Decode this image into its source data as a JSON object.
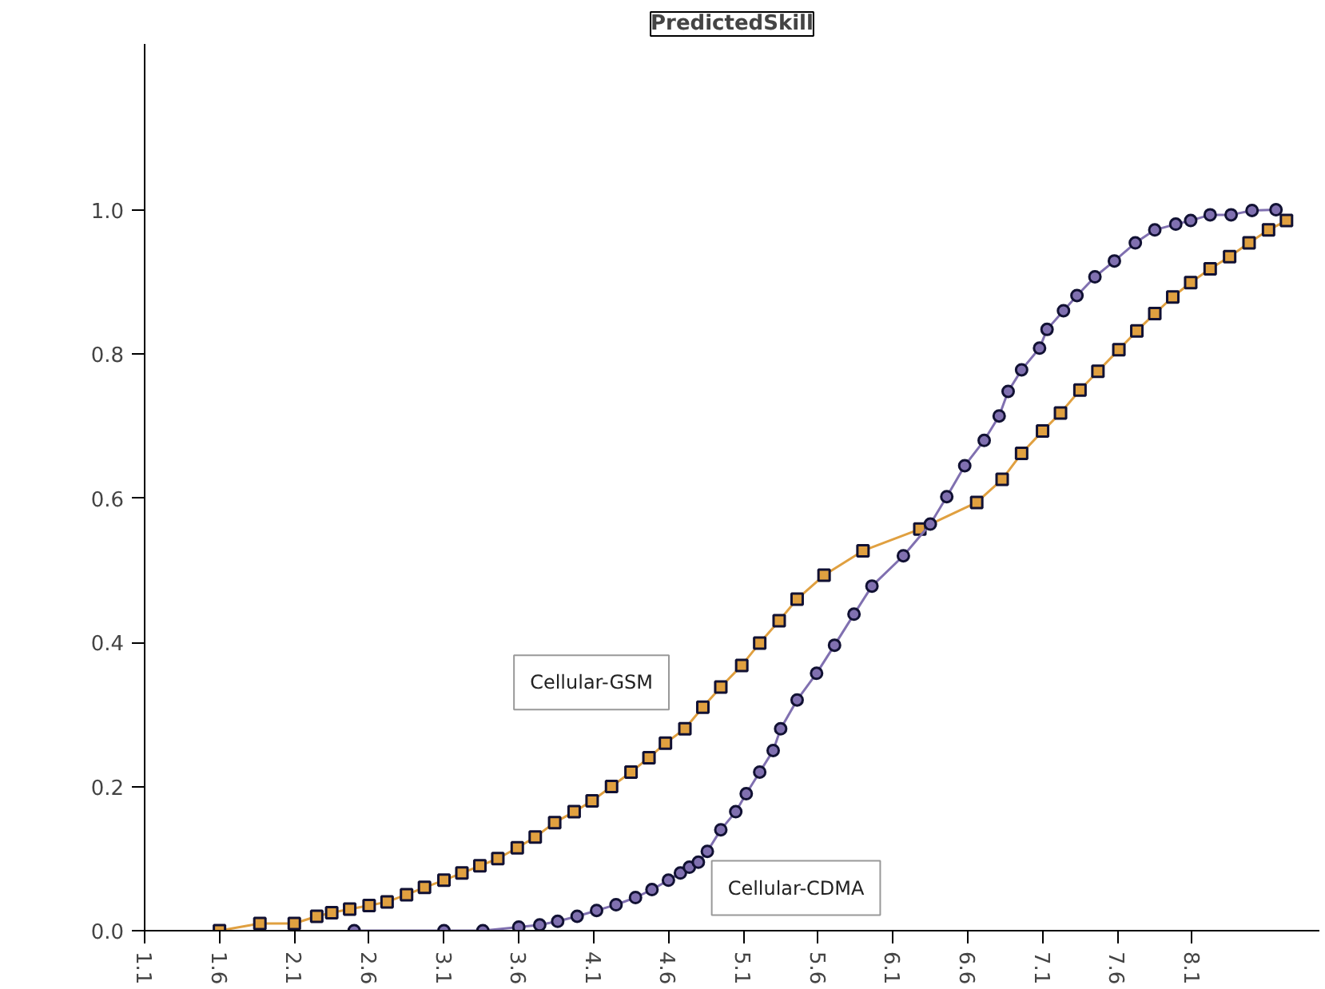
{
  "chart_data": {
    "type": "line",
    "title": "PredictedSkill",
    "xlim": [
      1.1,
      8.95
    ],
    "ylim": [
      0,
      1.23
    ],
    "xticks": [
      1.1,
      1.6,
      2.1,
      2.6,
      3.1,
      3.6,
      4.1,
      4.6,
      5.1,
      5.6,
      6.1,
      6.6,
      7.1,
      7.6,
      8.1
    ],
    "yticks": [
      {
        "value": 0,
        "label": "0.0"
      },
      {
        "value": 0.2,
        "label": "0.2"
      },
      {
        "value": 0.4,
        "label": "0.4"
      },
      {
        "value": 0.6,
        "label": "0.6"
      },
      {
        "value": 0.8,
        "label": "0.8"
      },
      {
        "value": 1,
        "label": "1.0"
      }
    ],
    "grid": false,
    "legend": false,
    "series": [
      {
        "name": "Cellular-GSM",
        "color": "#e0a040",
        "marker": "square",
        "x": [
          1.6,
          1.87,
          2.1,
          2.25,
          2.35,
          2.47,
          2.6,
          2.72,
          2.85,
          2.97,
          3.1,
          3.22,
          3.34,
          3.46,
          3.59,
          3.71,
          3.84,
          3.97,
          4.09,
          4.22,
          4.35,
          4.47,
          4.58,
          4.71,
          4.83,
          4.95,
          5.09,
          5.21,
          5.34,
          5.46,
          5.64,
          5.9,
          6.28,
          6.66,
          6.83,
          6.96,
          7.1,
          7.22,
          7.35,
          7.47,
          7.61,
          7.73,
          7.85,
          7.97,
          8.09,
          8.22,
          8.35,
          8.48,
          8.61,
          8.73
        ],
        "values": [
          0.0,
          0.01,
          0.01,
          0.02,
          0.025,
          0.03,
          0.035,
          0.04,
          0.05,
          0.06,
          0.07,
          0.08,
          0.09,
          0.1,
          0.115,
          0.13,
          0.15,
          0.165,
          0.18,
          0.2,
          0.22,
          0.24,
          0.26,
          0.28,
          0.31,
          0.338,
          0.368,
          0.399,
          0.43,
          0.46,
          0.493,
          0.527,
          0.557,
          0.594,
          0.626,
          0.662,
          0.693,
          0.718,
          0.75,
          0.776,
          0.806,
          0.832,
          0.856,
          0.879,
          0.899,
          0.918,
          0.935,
          0.954,
          0.972,
          0.985
        ]
      },
      {
        "name": "Cellular-CDMA",
        "color": "#8070b0",
        "marker": "circle",
        "x": [
          2.5,
          3.1,
          3.36,
          3.6,
          3.74,
          3.86,
          3.99,
          4.12,
          4.25,
          4.38,
          4.49,
          4.6,
          4.68,
          4.74,
          4.8,
          4.86,
          4.95,
          5.05,
          5.12,
          5.21,
          5.3,
          5.35,
          5.46,
          5.59,
          5.71,
          5.84,
          5.96,
          6.17,
          6.35,
          6.46,
          6.58,
          6.71,
          6.81,
          6.87,
          6.96,
          7.08,
          7.13,
          7.24,
          7.33,
          7.45,
          7.58,
          7.72,
          7.85,
          7.99,
          8.09,
          8.22,
          8.36,
          8.5,
          8.66
        ],
        "values": [
          0.0,
          0.0,
          0.0,
          0.005,
          0.008,
          0.013,
          0.02,
          0.028,
          0.036,
          0.046,
          0.057,
          0.07,
          0.08,
          0.088,
          0.095,
          0.11,
          0.14,
          0.165,
          0.19,
          0.22,
          0.25,
          0.28,
          0.32,
          0.357,
          0.396,
          0.439,
          0.478,
          0.52,
          0.564,
          0.602,
          0.645,
          0.68,
          0.714,
          0.748,
          0.778,
          0.808,
          0.834,
          0.86,
          0.881,
          0.907,
          0.929,
          0.954,
          0.972,
          0.98,
          0.985,
          0.993,
          0.993,
          0.999,
          1.0
        ]
      }
    ]
  }
}
